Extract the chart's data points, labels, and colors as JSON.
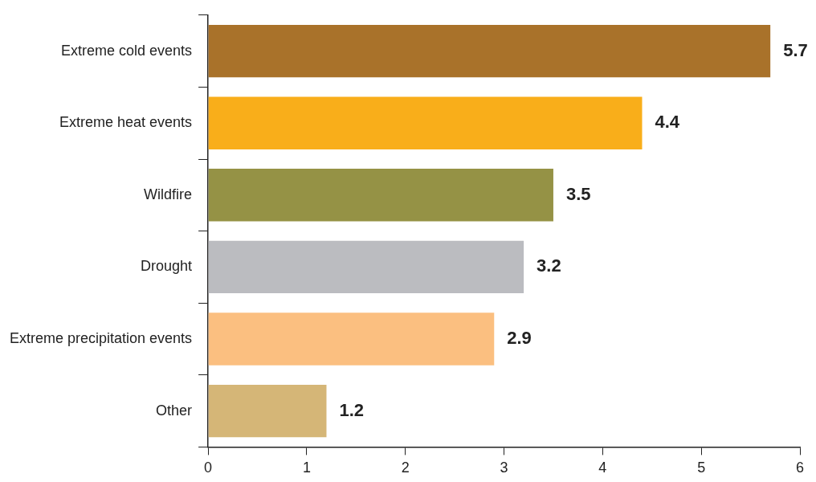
{
  "chart_data": {
    "type": "bar",
    "orientation": "horizontal",
    "categories": [
      "Extreme cold events",
      "Extreme heat events",
      "Wildfire",
      "Drought",
      "Extreme precipitation events",
      "Other"
    ],
    "values": [
      5.7,
      4.4,
      3.5,
      3.2,
      2.9,
      1.2
    ],
    "colors": [
      "#a9722a",
      "#f9ae1a",
      "#959245",
      "#bbbcc0",
      "#fbbf80",
      "#d5b677"
    ],
    "xlim": [
      0,
      6
    ],
    "xticks": [
      0,
      1,
      2,
      3,
      4,
      5,
      6
    ],
    "grid": false,
    "legend": false,
    "data_labels": true
  }
}
